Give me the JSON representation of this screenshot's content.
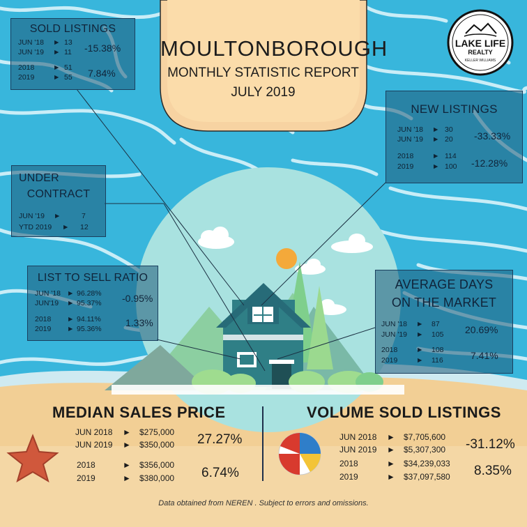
{
  "header": {
    "title": "MOULTONBOROUGH",
    "subtitle": "MONTHLY STATISTIC REPORT",
    "period": "JULY 2019"
  },
  "logo": {
    "line1": "LAKE LIFE",
    "line2": "REALTY",
    "arc_text": "KELLER WILLIAMS"
  },
  "sold_listings": {
    "title": "SOLD LISTINGS",
    "rows": [
      {
        "label": "JUN '18",
        "value": "13"
      },
      {
        "label": "JUN '19",
        "value": "11"
      },
      {
        "label": "2018",
        "value": "51"
      },
      {
        "label": "2019",
        "value": "55"
      }
    ],
    "pct_month": "-15.38%",
    "pct_year": "7.84%"
  },
  "new_listings": {
    "title": "NEW LISTINGS",
    "rows": [
      {
        "label": "JUN '18",
        "value": "30"
      },
      {
        "label": "JUN '19",
        "value": "20"
      },
      {
        "label": "2018",
        "value": "114"
      },
      {
        "label": "2019",
        "value": "100"
      }
    ],
    "pct_month": "-33.33%",
    "pct_year": "-12.28%"
  },
  "under_contract": {
    "title_line1": "UNDER",
    "title_line2": "CONTRACT",
    "rows": [
      {
        "label": "JUN '19",
        "value": "7"
      },
      {
        "label": "YTD 2019",
        "value": "12"
      }
    ]
  },
  "list_to_sell": {
    "title": "LIST TO SELL  RATIO",
    "rows": [
      {
        "label": "JUN '18",
        "value": "96.28%"
      },
      {
        "label": "JUN'19",
        "value": "95.37%"
      },
      {
        "label": "2018",
        "value": "94.11%"
      },
      {
        "label": "2019",
        "value": "95.36%"
      }
    ],
    "pct_month": "-0.95%",
    "pct_year": "1.33%"
  },
  "avg_days": {
    "title_line1": "AVERAGE DAYS",
    "title_line2": "ON THE MARKET",
    "rows": [
      {
        "label": "JUN '18",
        "value": "87"
      },
      {
        "label": "JUN '19",
        "value": "105"
      },
      {
        "label": "2018",
        "value": "108"
      },
      {
        "label": "2019",
        "value": "116"
      }
    ],
    "pct_month": "20.69%",
    "pct_year": "7.41%"
  },
  "median_price": {
    "title": "MEDIAN SALES PRICE",
    "rows": [
      {
        "label": "JUN 2018",
        "value": "$275,000"
      },
      {
        "label": "JUN 2019",
        "value": "$350,000"
      },
      {
        "label": "2018",
        "value": "$356,000"
      },
      {
        "label": "2019",
        "value": "$380,000"
      }
    ],
    "pct_month": "27.27%",
    "pct_year": "6.74%"
  },
  "volume_sold": {
    "title": "VOLUME SOLD LISTINGS",
    "rows": [
      {
        "label": "JUN 2018",
        "value": "$7,705,600"
      },
      {
        "label": "JUN 2019",
        "value": "$5,307,300"
      },
      {
        "label": "2018",
        "value": "$34,239,033"
      },
      {
        "label": "2019",
        "value": "$37,097,580"
      }
    ],
    "pct_month": "-31.12%",
    "pct_year": "8.35%"
  },
  "arrow_glyph": "►",
  "footer": "Data obtained from NEREN . Subject to errors and omissions.",
  "colors": {
    "water": "#3ab7dc",
    "sand": "#f2cf95",
    "box_fill": "#2b6c8e",
    "title_panel": "#f7d2a0",
    "house": "#2f7f86"
  }
}
